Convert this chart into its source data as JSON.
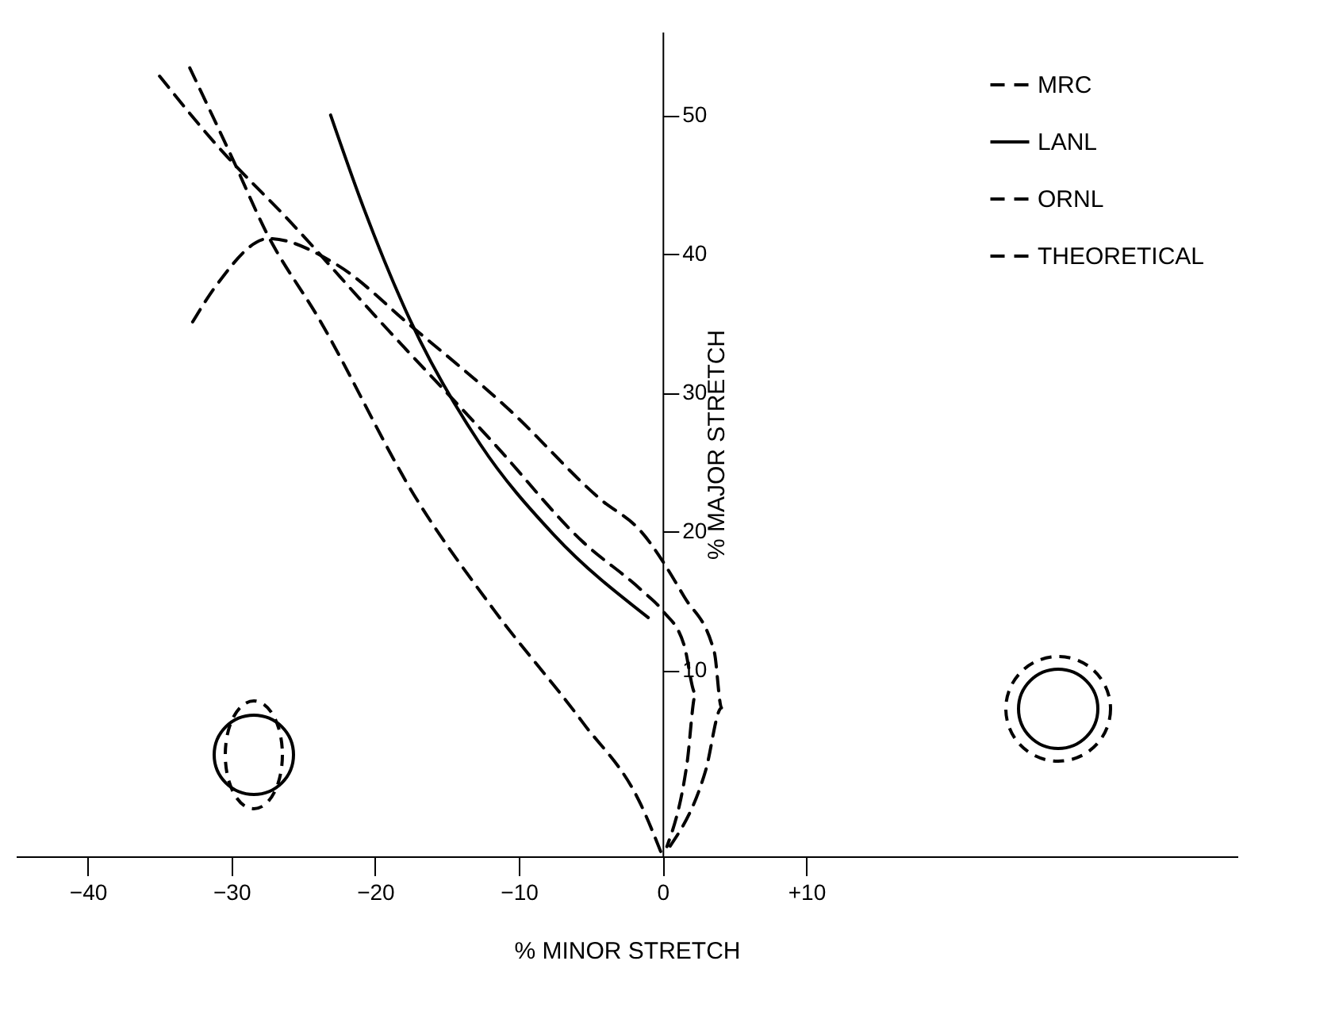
{
  "chart_data": {
    "type": "line",
    "xlabel": "% MINOR STRETCH",
    "ylabel": "% MAJOR STRETCH",
    "xlim": [
      -45,
      40
    ],
    "ylim": [
      -3.4,
      56
    ],
    "xticks": [
      -40,
      -30,
      -20,
      -10,
      0,
      {
        "value": 10,
        "label": "+10"
      }
    ],
    "yticks": [
      10,
      20,
      30,
      40,
      50
    ],
    "grid": false,
    "legend": "top right",
    "series": [
      {
        "name": "MRC",
        "color": "#000000",
        "line_style": "dashed",
        "x": [
          -35.0,
          -31.0,
          -25.9,
          -19.8,
          -11.7,
          -5.6,
          -1.5,
          0,
          1.5,
          2.3,
          1.7,
          0.3
        ],
        "values": [
          52.8,
          47.8,
          42.3,
          35.3,
          26.3,
          19.3,
          15.8,
          14.3,
          11.8,
          8.3,
          3.3,
          -2.7
        ]
      },
      {
        "name": "LANL",
        "color": "#000000",
        "line_style": "solid",
        "x": [
          -23.1,
          -20.8,
          -17.6,
          -12.7,
          -7.6,
          -1.0
        ],
        "values": [
          50,
          43.3,
          35.3,
          26.3,
          19.8,
          13.8
        ]
      },
      {
        "name": "ORNL",
        "color": "#000000",
        "line_style": "dashed",
        "x": [
          -32.7,
          -31.0,
          -27.4,
          -22.8,
          -17.5,
          -10.7,
          -4.3,
          -1.5,
          1.5,
          3.6,
          4.1,
          3.0,
          0.5
        ],
        "values": [
          35.1,
          37.8,
          41.1,
          39.3,
          34.8,
          28.8,
          22.3,
          20.0,
          15.3,
          11.3,
          7.3,
          2.8,
          -2.7
        ]
      },
      {
        "name": "THEORETICAL",
        "color": "#000000",
        "line_style": "dashed",
        "x": [
          -32.9,
          -29.9,
          -27.6,
          -23.9,
          -17.1,
          -11.7,
          -5.6,
          -1.5,
          0
        ],
        "values": [
          53.4,
          46.8,
          41.6,
          35.3,
          22.3,
          14.3,
          6.3,
          0.3,
          -3.4
        ]
      }
    ]
  }
}
